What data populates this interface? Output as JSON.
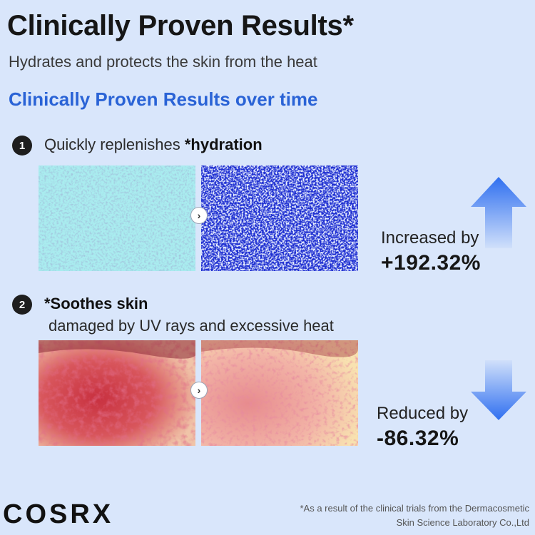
{
  "header": {
    "title": "Clinically Proven Results*",
    "subtitle": "Hydrates and protects the skin from the heat",
    "section_heading": "Clinically Proven Results over time"
  },
  "steps": [
    {
      "number": "1",
      "text_plain": "Quickly replenishes ",
      "text_bold": "*hydration",
      "result_label": "Increased by",
      "result_value": "+192.32%",
      "direction": "up"
    },
    {
      "number": "2",
      "text_bold": "*Soothes skin",
      "text_line2": "damaged by UV rays and excessive heat",
      "result_label": "Reduced by",
      "result_value": "-86.32%",
      "direction": "down"
    }
  ],
  "icons": {
    "compare": "chevron-right-icon",
    "increase": "arrow-up-icon",
    "decrease": "arrow-down-icon"
  },
  "colors": {
    "background": "#d9e6fb",
    "accent_blue": "#2a63d6",
    "arrow_blue": "#2f6ff0"
  },
  "brand": {
    "logo": "COSRX"
  },
  "footnote": {
    "line1": "*As a result of the clinical trials from the Dermacosmetic",
    "line2": "Skin Science Laboratory Co.,Ltd"
  }
}
